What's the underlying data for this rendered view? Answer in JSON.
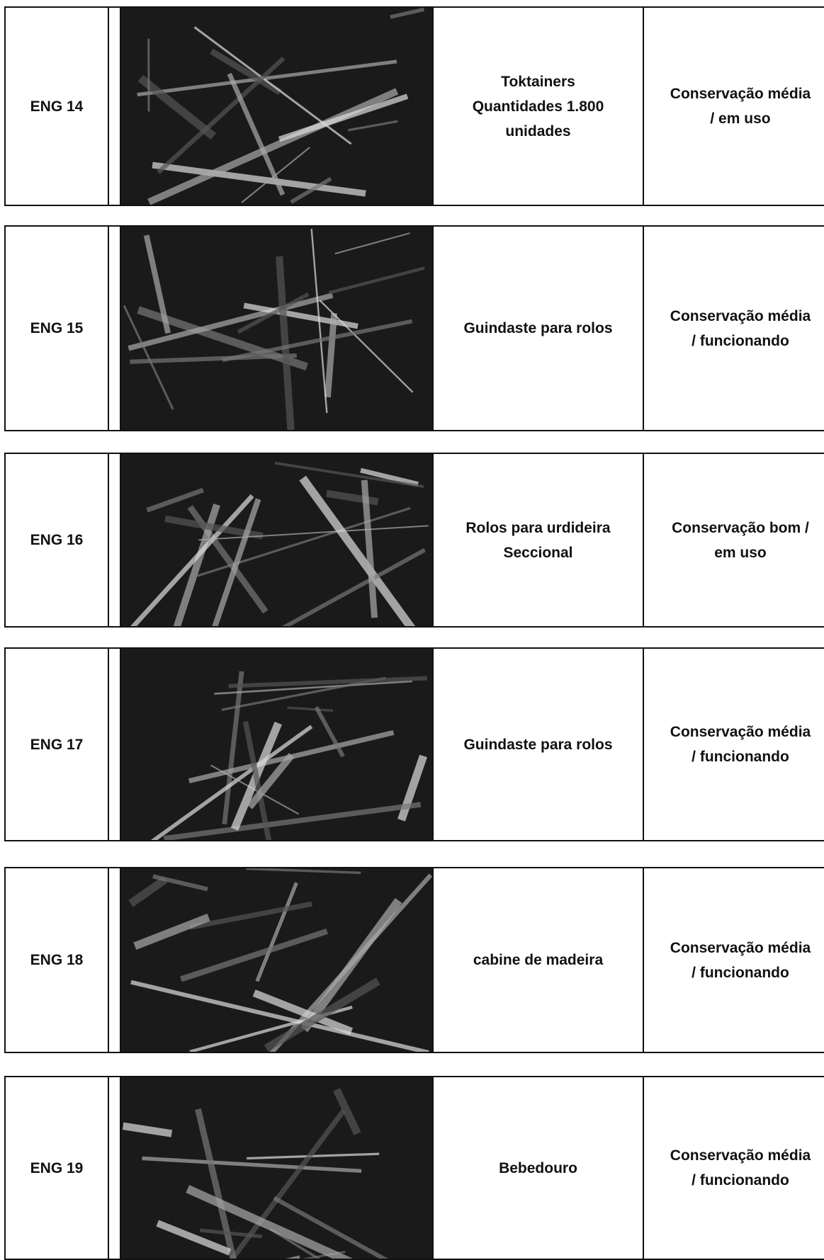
{
  "rows": [
    {
      "id": "ENG 14",
      "description": [
        "Toktainers",
        "Quantidades 1.800",
        "unidades"
      ],
      "status": [
        "Conservação média",
        "/ em uso"
      ]
    },
    {
      "id": "ENG 15",
      "description": [
        "Guindaste para rolos"
      ],
      "status": [
        "Conservação média",
        "/ funcionando"
      ]
    },
    {
      "id": "ENG 16",
      "description": [
        "Rolos para urdideira",
        "Seccional"
      ],
      "status": [
        "Conservação bom /",
        "em uso"
      ]
    },
    {
      "id": "ENG 17",
      "description": [
        "Guindaste para rolos"
      ],
      "status": [
        "Conservação média",
        "/ funcionando"
      ]
    },
    {
      "id": "ENG 18",
      "description": [
        "cabine de madeira"
      ],
      "status": [
        "Conservação média",
        "/ funcionando"
      ]
    },
    {
      "id": "ENG 19",
      "description": [
        "Bebedouro"
      ],
      "status": [
        "Conservação média",
        "/ funcionando"
      ]
    }
  ]
}
